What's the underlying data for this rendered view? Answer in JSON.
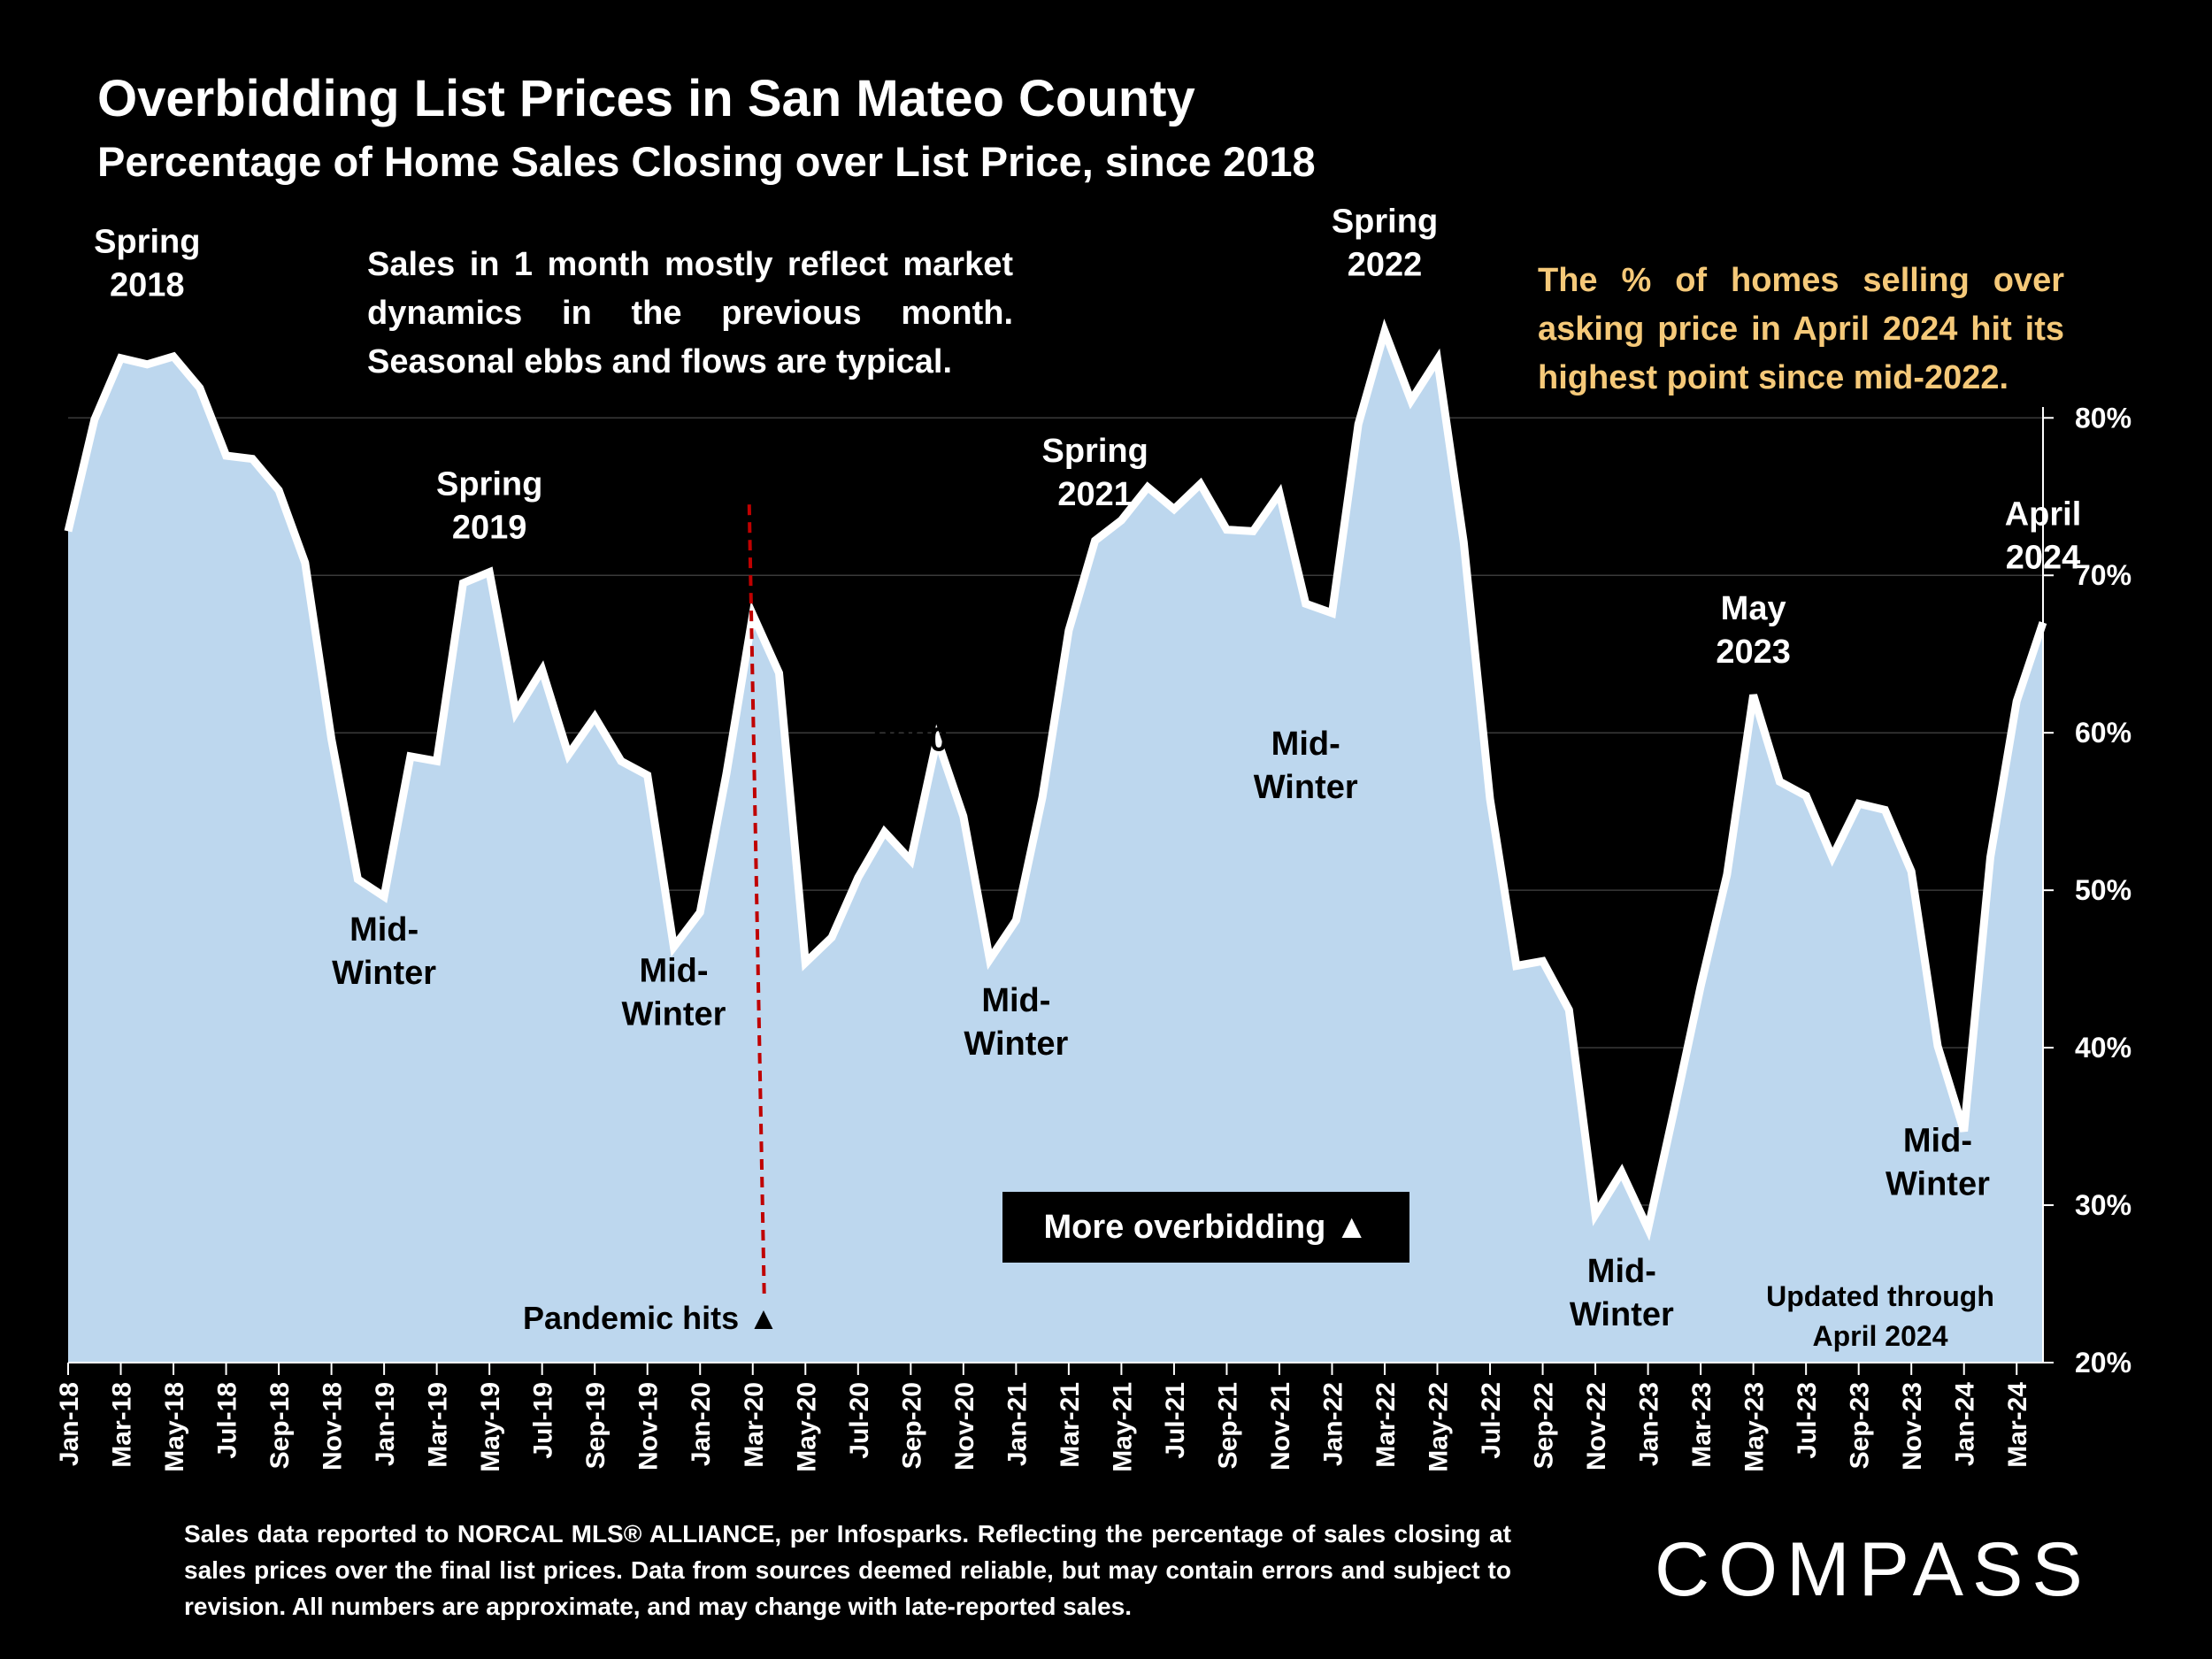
{
  "title": "Overbidding List Prices in San Mateo County",
  "subtitle": "Percentage of Home Sales Closing over List Price, since 2018",
  "note": "Sales in 1 month mostly reflect market dynamics in the previous month. Seasonal ebbs and flows are typical.",
  "highlight": "The % of homes selling over asking price in April 2024 hit its highest point since mid-2022.",
  "overbidding_box": "More overbidding ▲",
  "pandemic_label": "Pandemic hits ▲",
  "updated": [
    "Updated through",
    "April 2024"
  ],
  "footnote": "Sales data reported to NORCAL MLS® ALLIANCE, per Infosparks. Reflecting the percentage of sales closing at sales prices over the final list prices. Data from sources deemed reliable, but may contain errors and subject to revision. All numbers are approximate, and may change with late-reported sales.",
  "logo": "COMPASS",
  "colors": {
    "background": "#000000",
    "area_fill": "#BDD7EE",
    "line": "#FFFFFF",
    "highlight_text": "#F5C979",
    "pandemic_line": "#C00000",
    "grid": "#3a3a3a"
  },
  "chart_data": {
    "type": "area",
    "x": [
      "Jan-18",
      "Feb-18",
      "Mar-18",
      "Apr-18",
      "May-18",
      "Jun-18",
      "Jul-18",
      "Aug-18",
      "Sep-18",
      "Oct-18",
      "Nov-18",
      "Dec-18",
      "Jan-19",
      "Feb-19",
      "Mar-19",
      "Apr-19",
      "May-19",
      "Jun-19",
      "Jul-19",
      "Aug-19",
      "Sep-19",
      "Oct-19",
      "Nov-19",
      "Dec-19",
      "Jan-20",
      "Feb-20",
      "Mar-20",
      "Apr-20",
      "May-20",
      "Jun-20",
      "Jul-20",
      "Aug-20",
      "Sep-20",
      "Oct-20",
      "Nov-20",
      "Dec-20",
      "Jan-21",
      "Feb-21",
      "Mar-21",
      "Apr-21",
      "May-21",
      "Jun-21",
      "Jul-21",
      "Aug-21",
      "Sep-21",
      "Oct-21",
      "Nov-21",
      "Dec-21",
      "Jan-22",
      "Feb-22",
      "Mar-22",
      "Apr-22",
      "May-22",
      "Jun-22",
      "Jul-22",
      "Aug-22",
      "Sep-22",
      "Oct-22",
      "Nov-22",
      "Dec-22",
      "Jan-23",
      "Feb-23",
      "Mar-23",
      "Apr-23",
      "May-23",
      "Jun-23",
      "Jul-23",
      "Aug-23",
      "Sep-23",
      "Oct-23",
      "Nov-23",
      "Dec-23",
      "Jan-24",
      "Feb-24",
      "Mar-24",
      "Apr-24"
    ],
    "x_tick_labels": [
      "Jan-18",
      "Mar-18",
      "May-18",
      "Jul-18",
      "Sep-18",
      "Nov-18",
      "Jan-19",
      "Mar-19",
      "May-19",
      "Jul-19",
      "Sep-19",
      "Nov-19",
      "Jan-20",
      "Mar-20",
      "May-20",
      "Jul-20",
      "Sep-20",
      "Nov-20",
      "Jan-21",
      "Mar-21",
      "May-21",
      "Jul-21",
      "Sep-21",
      "Nov-21",
      "Jan-22",
      "Mar-22",
      "May-22",
      "Jul-22",
      "Sep-22",
      "Nov-22",
      "Jan-23",
      "Mar-23",
      "May-23",
      "Jul-23",
      "Sep-23",
      "Nov-23",
      "Jan-24",
      "Mar-24"
    ],
    "values": [
      72.8,
      79.9,
      83.8,
      83.4,
      83.9,
      81.9,
      77.6,
      77.4,
      75.4,
      70.8,
      59.6,
      50.7,
      49.6,
      58.5,
      58.2,
      69.5,
      70.2,
      61.3,
      64.0,
      58.6,
      61.0,
      58.2,
      57.3,
      46.4,
      48.6,
      57.4,
      67.5,
      63.8,
      45.4,
      47.0,
      50.8,
      53.7,
      51.9,
      59.6,
      54.7,
      45.6,
      48.1,
      55.9,
      66.5,
      72.2,
      73.5,
      75.6,
      74.2,
      75.8,
      72.9,
      72.8,
      75.2,
      68.2,
      67.6,
      79.6,
      85.5,
      81.1,
      83.7,
      72.1,
      55.8,
      45.2,
      45.5,
      42.4,
      29.4,
      32.1,
      28.5,
      36.1,
      43.9,
      51.0,
      62.4,
      56.9,
      56.0,
      52.1,
      55.5,
      55.1,
      51.2,
      40.1,
      34.7,
      52.1,
      62.0,
      67.0
    ],
    "y_ticks": [
      "80%",
      "70%",
      "60%",
      "50%",
      "40%",
      "30%",
      "20%"
    ],
    "y_tick_values": [
      80,
      70,
      60,
      50,
      40,
      30,
      20
    ],
    "ylim": [
      20,
      83.5
    ],
    "yaxis_position": "right",
    "grid": true,
    "pandemic_month": "Mar-20",
    "annotations": [
      {
        "lines": [
          "Spring",
          "2018"
        ],
        "at": "Apr-18",
        "value": 90.5
      },
      {
        "lines": [
          "Spring",
          "2019"
        ],
        "at": "May-19",
        "value": 75.1
      },
      {
        "lines": [
          "Mid-",
          "Winter"
        ],
        "at": "Jan-19",
        "value": 46.8
      },
      {
        "lines": [
          "Mid-",
          "Winter"
        ],
        "at": "Dec-19",
        "value": 44.2
      },
      {
        "lines": [
          "Fall",
          "2020"
        ],
        "at": "Sep-20",
        "value": 61.6
      },
      {
        "lines": [
          "Mid-",
          "Winter"
        ],
        "at": "Jan-21",
        "value": 42.3
      },
      {
        "lines": [
          "Spring",
          "2021"
        ],
        "at": "Apr-21",
        "value": 77.2
      },
      {
        "lines": [
          "Mid-",
          "Winter"
        ],
        "at": "Dec-21",
        "value": 58.6
      },
      {
        "lines": [
          "Spring",
          "2022"
        ],
        "at": "Mar-22",
        "value": 91.8
      },
      {
        "lines": [
          "Mid-",
          "Winter"
        ],
        "at": "Dec-22",
        "value": 25.1
      },
      {
        "lines": [
          "May",
          "2023"
        ],
        "at": "May-23",
        "value": 67.2
      },
      {
        "lines": [
          "Mid-",
          "Winter"
        ],
        "at": "Dec-23",
        "value": 33.4
      },
      {
        "lines": [
          "April",
          "2024"
        ],
        "at": "Apr-24",
        "value": 73.2
      }
    ]
  }
}
